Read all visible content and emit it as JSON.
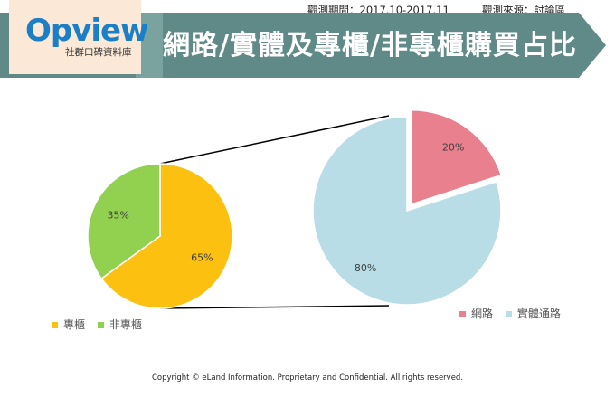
{
  "header": {
    "period": "觀測期間：2017.10-2017.11",
    "source": "觀測來源：討論區",
    "logo_text": "Opview",
    "logo_subtitle": "社群口碑資料庫",
    "title": "網路/實體及專櫃/非專櫃購買占比"
  },
  "footer": {
    "copyright": "Copyright © eLand Information. Proprietary and Confidential. All rights reserved."
  },
  "colors": {
    "banner": "#5f8a87",
    "logo_bg": "#fbe8d6",
    "counter": "#fcc010",
    "non_counter": "#92d050",
    "online": "#e8808e",
    "physical": "#b8dde7"
  },
  "chart_data": [
    {
      "type": "pie",
      "categories": [
        "專櫃",
        "非專櫃"
      ],
      "values": [
        65,
        35
      ],
      "labels": [
        "65%",
        "35%"
      ],
      "colors": [
        "#fcc010",
        "#92d050"
      ],
      "legend": "bottom-left"
    },
    {
      "type": "pie",
      "categories": [
        "網路",
        "實體通路"
      ],
      "values": [
        20,
        80
      ],
      "labels": [
        "20%",
        "80%"
      ],
      "colors": [
        "#e8808e",
        "#b8dde7"
      ],
      "exploded": "網路",
      "legend": "bottom-right"
    }
  ]
}
